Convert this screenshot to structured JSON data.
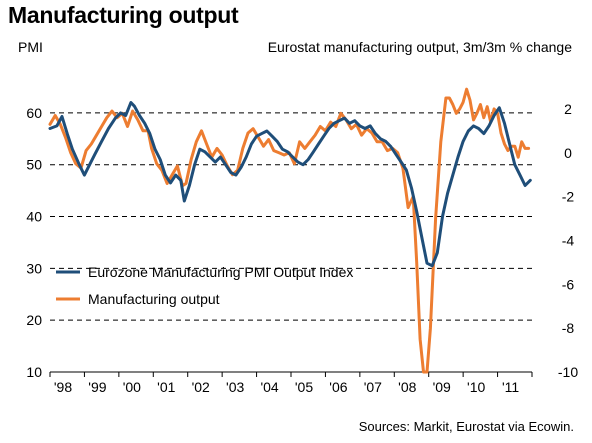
{
  "page": {
    "title": "Manufacturing output",
    "left_axis_unit": "PMI",
    "right_axis_unit": "Eurostat manufacturing output, 3m/3m % change",
    "source": "Sources: Markit, Eurostat via Ecowin."
  },
  "chart_data": {
    "type": "line",
    "title": "Manufacturing output",
    "xlabel": "",
    "ylabel": "PMI",
    "ylabel_right": "Eurostat manufacturing output, 3m/3m % change",
    "xlim": [
      1998.0,
      2012.0
    ],
    "ylim_left": [
      10,
      65
    ],
    "ylim_right": [
      -10,
      3
    ],
    "yticks_left": [
      10,
      20,
      30,
      40,
      50,
      60
    ],
    "yticks_right": [
      -10,
      -8,
      -6,
      -4,
      -2,
      0,
      2
    ],
    "ytick_labels_right": [
      "-10",
      "-8",
      "-6",
      "-4",
      "-2",
      "0",
      "2"
    ],
    "gridlines": "dashed at left-axis ticks",
    "legend_position": "lower-left",
    "x_ticks": [
      {
        "label": "'98",
        "x": 1998.0
      },
      {
        "label": "'99",
        "x": 1999.0
      },
      {
        "label": "'00",
        "x": 2000.0
      },
      {
        "label": "'01",
        "x": 2001.0
      },
      {
        "label": "'02",
        "x": 2002.0
      },
      {
        "label": "'03",
        "x": 2003.0
      },
      {
        "label": "'04",
        "x": 2004.0
      },
      {
        "label": "'05",
        "x": 2005.0
      },
      {
        "label": "'06",
        "x": 2006.0
      },
      {
        "label": "'07",
        "x": 2007.0
      },
      {
        "label": "'08",
        "x": 2008.0
      },
      {
        "label": "'09",
        "x": 2009.0
      },
      {
        "label": "'10",
        "x": 2010.0
      },
      {
        "label": "'11",
        "x": 2011.0
      }
    ],
    "series": [
      {
        "name": "Eurozone Manufacturing PMI Output Index",
        "axis": "left",
        "color": "#1f4e79",
        "points": [
          [
            1998.0,
            57.0
          ],
          [
            1998.2,
            57.5
          ],
          [
            1998.35,
            59.3
          ],
          [
            1998.5,
            56.0
          ],
          [
            1998.65,
            53.0
          ],
          [
            1998.85,
            50.0
          ],
          [
            1999.0,
            48.0
          ],
          [
            1999.15,
            50.0
          ],
          [
            1999.3,
            52.0
          ],
          [
            1999.5,
            54.5
          ],
          [
            1999.7,
            57.0
          ],
          [
            1999.9,
            59.0
          ],
          [
            2000.05,
            60.0
          ],
          [
            2000.2,
            59.5
          ],
          [
            2000.35,
            62.0
          ],
          [
            2000.45,
            61.3
          ],
          [
            2000.6,
            59.5
          ],
          [
            2000.75,
            58.0
          ],
          [
            2000.9,
            56.0
          ],
          [
            2001.05,
            53.0
          ],
          [
            2001.2,
            51.0
          ],
          [
            2001.35,
            48.0
          ],
          [
            2001.5,
            46.5
          ],
          [
            2001.65,
            48.0
          ],
          [
            2001.8,
            47.0
          ],
          [
            2001.9,
            43.0
          ],
          [
            2002.05,
            46.0
          ],
          [
            2002.2,
            50.0
          ],
          [
            2002.35,
            53.0
          ],
          [
            2002.5,
            52.5
          ],
          [
            2002.65,
            51.5
          ],
          [
            2002.8,
            50.5
          ],
          [
            2002.95,
            51.5
          ],
          [
            2003.1,
            50.0
          ],
          [
            2003.25,
            48.5
          ],
          [
            2003.4,
            48.0
          ],
          [
            2003.55,
            49.5
          ],
          [
            2003.7,
            51.5
          ],
          [
            2003.85,
            54.0
          ],
          [
            2004.0,
            55.5
          ],
          [
            2004.15,
            56.0
          ],
          [
            2004.3,
            56.5
          ],
          [
            2004.45,
            55.5
          ],
          [
            2004.6,
            54.5
          ],
          [
            2004.75,
            53.0
          ],
          [
            2004.9,
            52.5
          ],
          [
            2005.05,
            51.5
          ],
          [
            2005.2,
            50.5
          ],
          [
            2005.35,
            50.0
          ],
          [
            2005.5,
            51.0
          ],
          [
            2005.65,
            52.5
          ],
          [
            2005.8,
            54.0
          ],
          [
            2005.95,
            55.5
          ],
          [
            2006.1,
            57.0
          ],
          [
            2006.25,
            58.0
          ],
          [
            2006.4,
            58.5
          ],
          [
            2006.55,
            59.0
          ],
          [
            2006.7,
            58.0
          ],
          [
            2006.85,
            58.5
          ],
          [
            2007.0,
            57.5
          ],
          [
            2007.15,
            57.0
          ],
          [
            2007.3,
            57.5
          ],
          [
            2007.45,
            56.0
          ],
          [
            2007.6,
            55.0
          ],
          [
            2007.75,
            54.5
          ],
          [
            2007.9,
            53.5
          ],
          [
            2008.05,
            52.0
          ],
          [
            2008.2,
            50.5
          ],
          [
            2008.35,
            49.0
          ],
          [
            2008.5,
            45.5
          ],
          [
            2008.65,
            41.0
          ],
          [
            2008.8,
            36.0
          ],
          [
            2008.95,
            31.0
          ],
          [
            2009.1,
            30.5
          ],
          [
            2009.25,
            33.0
          ],
          [
            2009.4,
            40.0
          ],
          [
            2009.55,
            44.5
          ],
          [
            2009.7,
            48.0
          ],
          [
            2009.85,
            51.5
          ],
          [
            2010.0,
            54.5
          ],
          [
            2010.15,
            56.5
          ],
          [
            2010.3,
            57.5
          ],
          [
            2010.45,
            57.0
          ],
          [
            2010.6,
            56.0
          ],
          [
            2010.75,
            57.5
          ],
          [
            2010.9,
            59.5
          ],
          [
            2011.05,
            61.0
          ],
          [
            2011.2,
            58.0
          ],
          [
            2011.35,
            54.0
          ],
          [
            2011.5,
            50.0
          ],
          [
            2011.65,
            48.0
          ],
          [
            2011.8,
            46.0
          ],
          [
            2011.95,
            47.0
          ]
        ]
      },
      {
        "name": "Manufacturing output",
        "axis": "right",
        "color": "#ed7d31",
        "points": [
          [
            1998.0,
            1.3
          ],
          [
            1998.15,
            1.7
          ],
          [
            1998.3,
            1.3
          ],
          [
            1998.45,
            0.7
          ],
          [
            1998.6,
            0.0
          ],
          [
            1998.75,
            -0.5
          ],
          [
            1998.9,
            -0.7
          ],
          [
            1999.05,
            0.1
          ],
          [
            1999.2,
            0.4
          ],
          [
            1999.35,
            0.8
          ],
          [
            1999.5,
            1.2
          ],
          [
            1999.65,
            1.6
          ],
          [
            1999.8,
            1.9
          ],
          [
            1999.95,
            1.6
          ],
          [
            2000.1,
            1.8
          ],
          [
            2000.25,
            1.2
          ],
          [
            2000.4,
            1.9
          ],
          [
            2000.55,
            1.5
          ],
          [
            2000.7,
            1.0
          ],
          [
            2000.85,
            1.0
          ],
          [
            2000.95,
            0.2
          ],
          [
            2001.1,
            -0.5
          ],
          [
            2001.25,
            -0.8
          ],
          [
            2001.4,
            -1.4
          ],
          [
            2001.55,
            -1.0
          ],
          [
            2001.7,
            -0.6
          ],
          [
            2001.85,
            -1.5
          ],
          [
            2001.95,
            -1.4
          ],
          [
            2002.1,
            -0.3
          ],
          [
            2002.25,
            0.5
          ],
          [
            2002.4,
            1.0
          ],
          [
            2002.55,
            0.4
          ],
          [
            2002.7,
            -0.2
          ],
          [
            2002.85,
            0.2
          ],
          [
            2003.0,
            -0.1
          ],
          [
            2003.15,
            -0.6
          ],
          [
            2003.3,
            -1.0
          ],
          [
            2003.45,
            -0.8
          ],
          [
            2003.6,
            0.2
          ],
          [
            2003.75,
            0.9
          ],
          [
            2003.9,
            1.1
          ],
          [
            2004.05,
            0.7
          ],
          [
            2004.2,
            0.3
          ],
          [
            2004.35,
            0.6
          ],
          [
            2004.5,
            0.1
          ],
          [
            2004.65,
            0.0
          ],
          [
            2004.8,
            -0.1
          ],
          [
            2004.95,
            0.0
          ],
          [
            2005.1,
            -0.5
          ],
          [
            2005.25,
            0.5
          ],
          [
            2005.4,
            0.2
          ],
          [
            2005.55,
            0.5
          ],
          [
            2005.7,
            0.8
          ],
          [
            2005.85,
            1.2
          ],
          [
            2006.0,
            1.0
          ],
          [
            2006.15,
            1.4
          ],
          [
            2006.3,
            1.2
          ],
          [
            2006.45,
            1.8
          ],
          [
            2006.6,
            1.5
          ],
          [
            2006.75,
            1.1
          ],
          [
            2006.9,
            1.3
          ],
          [
            2007.05,
            0.8
          ],
          [
            2007.2,
            1.1
          ],
          [
            2007.35,
            0.9
          ],
          [
            2007.5,
            0.5
          ],
          [
            2007.65,
            0.5
          ],
          [
            2007.8,
            0.1
          ],
          [
            2007.95,
            0.2
          ],
          [
            2008.1,
            0.0
          ],
          [
            2008.25,
            -0.7
          ],
          [
            2008.4,
            -2.5
          ],
          [
            2008.55,
            -2.0
          ],
          [
            2008.65,
            -5.0
          ],
          [
            2008.75,
            -8.5
          ],
          [
            2008.85,
            -10.0
          ],
          [
            2008.95,
            -10.0
          ],
          [
            2009.05,
            -8.0
          ],
          [
            2009.2,
            -3.0
          ],
          [
            2009.35,
            0.5
          ],
          [
            2009.5,
            2.5
          ],
          [
            2009.6,
            2.5
          ],
          [
            2009.7,
            2.2
          ],
          [
            2009.8,
            1.8
          ],
          [
            2009.9,
            2.0
          ],
          [
            2010.0,
            2.3
          ],
          [
            2010.1,
            2.9
          ],
          [
            2010.2,
            2.4
          ],
          [
            2010.3,
            1.5
          ],
          [
            2010.4,
            1.8
          ],
          [
            2010.5,
            2.2
          ],
          [
            2010.6,
            1.6
          ],
          [
            2010.7,
            2.1
          ],
          [
            2010.8,
            1.4
          ],
          [
            2010.9,
            2.0
          ],
          [
            2011.0,
            1.8
          ],
          [
            2011.1,
            0.9
          ],
          [
            2011.2,
            0.4
          ],
          [
            2011.3,
            0.1
          ],
          [
            2011.4,
            0.3
          ],
          [
            2011.5,
            0.3
          ],
          [
            2011.6,
            -0.2
          ],
          [
            2011.7,
            0.5
          ],
          [
            2011.8,
            0.2
          ],
          [
            2011.9,
            0.2
          ]
        ]
      }
    ]
  }
}
